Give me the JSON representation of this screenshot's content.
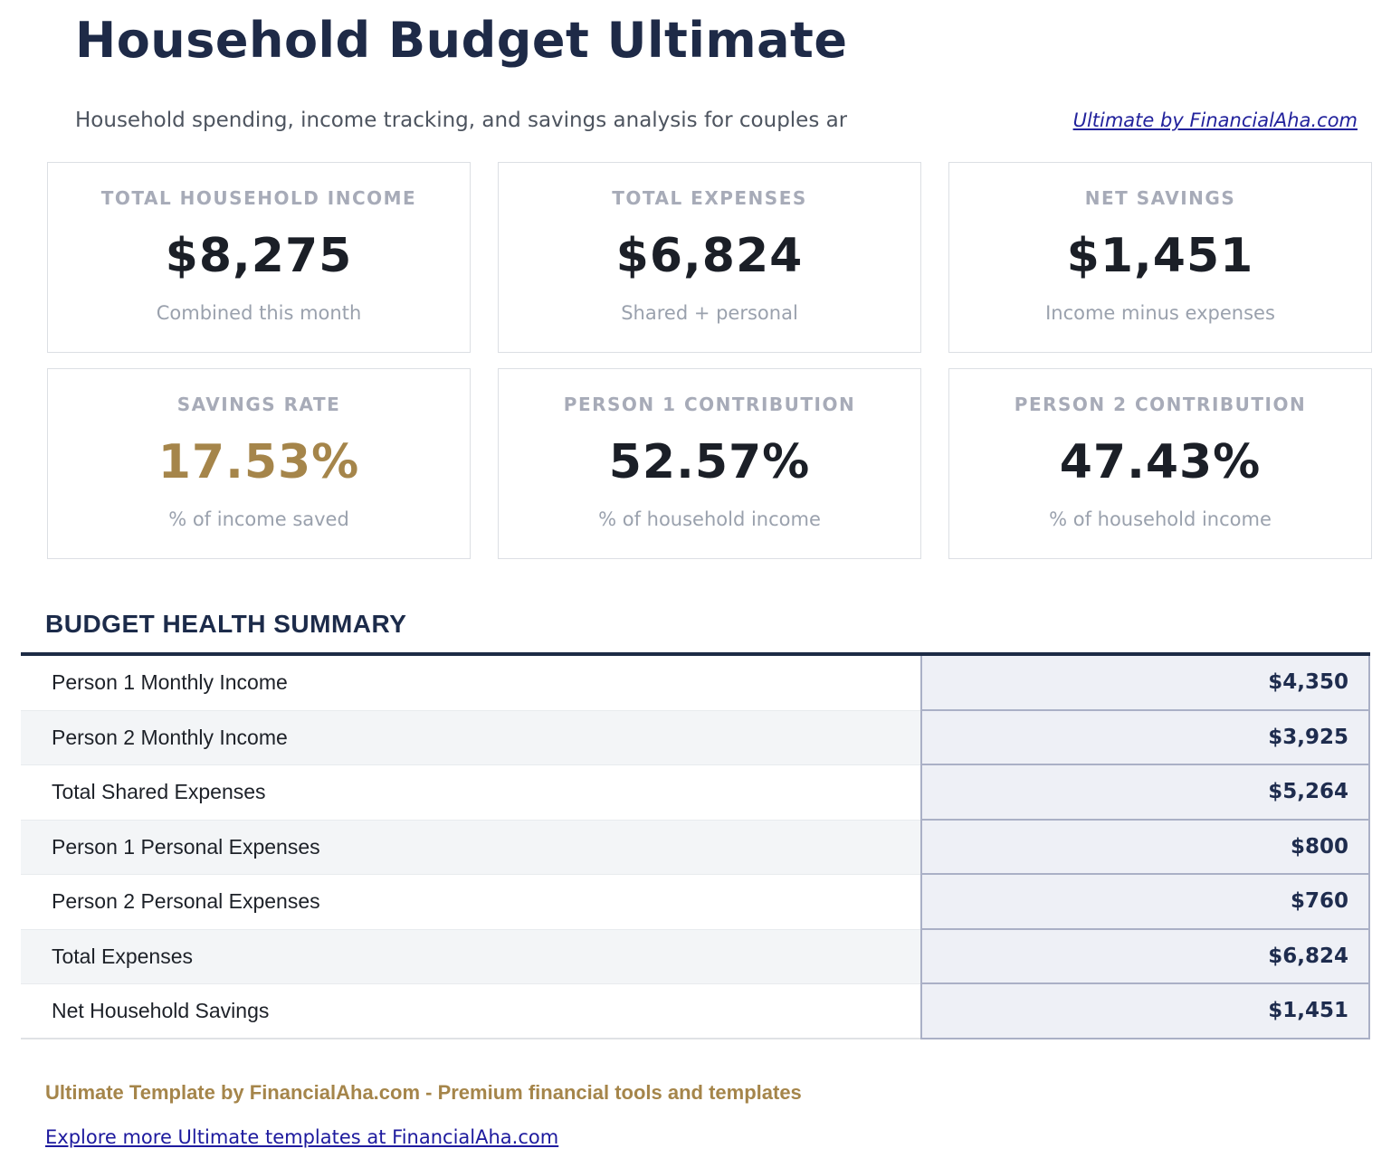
{
  "page": {
    "title": "Household Budget Ultimate",
    "subtitle": "Household spending, income tracking, and savings analysis for couples ar",
    "header_link": "Ultimate by FinancialAha.com"
  },
  "cards": [
    {
      "label": "TOTAL HOUSEHOLD INCOME",
      "value": "$8,275",
      "caption": "Combined this month"
    },
    {
      "label": "TOTAL EXPENSES",
      "value": "$6,824",
      "caption": "Shared + personal"
    },
    {
      "label": "NET SAVINGS",
      "value": "$1,451",
      "caption": "Income minus expenses"
    },
    {
      "label": "SAVINGS RATE",
      "value": "17.53%",
      "caption": "% of income saved",
      "accent": "gold"
    },
    {
      "label": "PERSON 1 CONTRIBUTION",
      "value": "52.57%",
      "caption": "% of household income"
    },
    {
      "label": "PERSON 2 CONTRIBUTION",
      "value": "47.43%",
      "caption": "% of household income"
    }
  ],
  "summary": {
    "heading": "BUDGET HEALTH SUMMARY",
    "rows": [
      {
        "label": "Person 1 Monthly Income",
        "value": "$4,350"
      },
      {
        "label": "Person 2 Monthly Income",
        "value": "$3,925"
      },
      {
        "label": "Total Shared Expenses",
        "value": "$5,264"
      },
      {
        "label": "Person 1 Personal Expenses",
        "value": "$800"
      },
      {
        "label": "Person 2 Personal Expenses",
        "value": "$760"
      },
      {
        "label": "Total Expenses",
        "value": "$6,824"
      },
      {
        "label": "Net Household Savings",
        "value": "$1,451"
      }
    ]
  },
  "footer": {
    "tagline": "Ultimate Template by FinancialAha.com - Premium financial tools and templates",
    "link": "Explore more Ultimate templates at FinancialAha.com"
  },
  "colors": {
    "navy": "#1e2a47",
    "gold": "#a5854a",
    "header_link_blue": "#22229c",
    "footer_link_blue": "#1d1a9e",
    "value_cell_bg": "#eef0f6",
    "value_cell_border": "#aab0c6",
    "row_alt_bg": "#f3f5f7",
    "card_label_gray": "#a7abb8"
  }
}
